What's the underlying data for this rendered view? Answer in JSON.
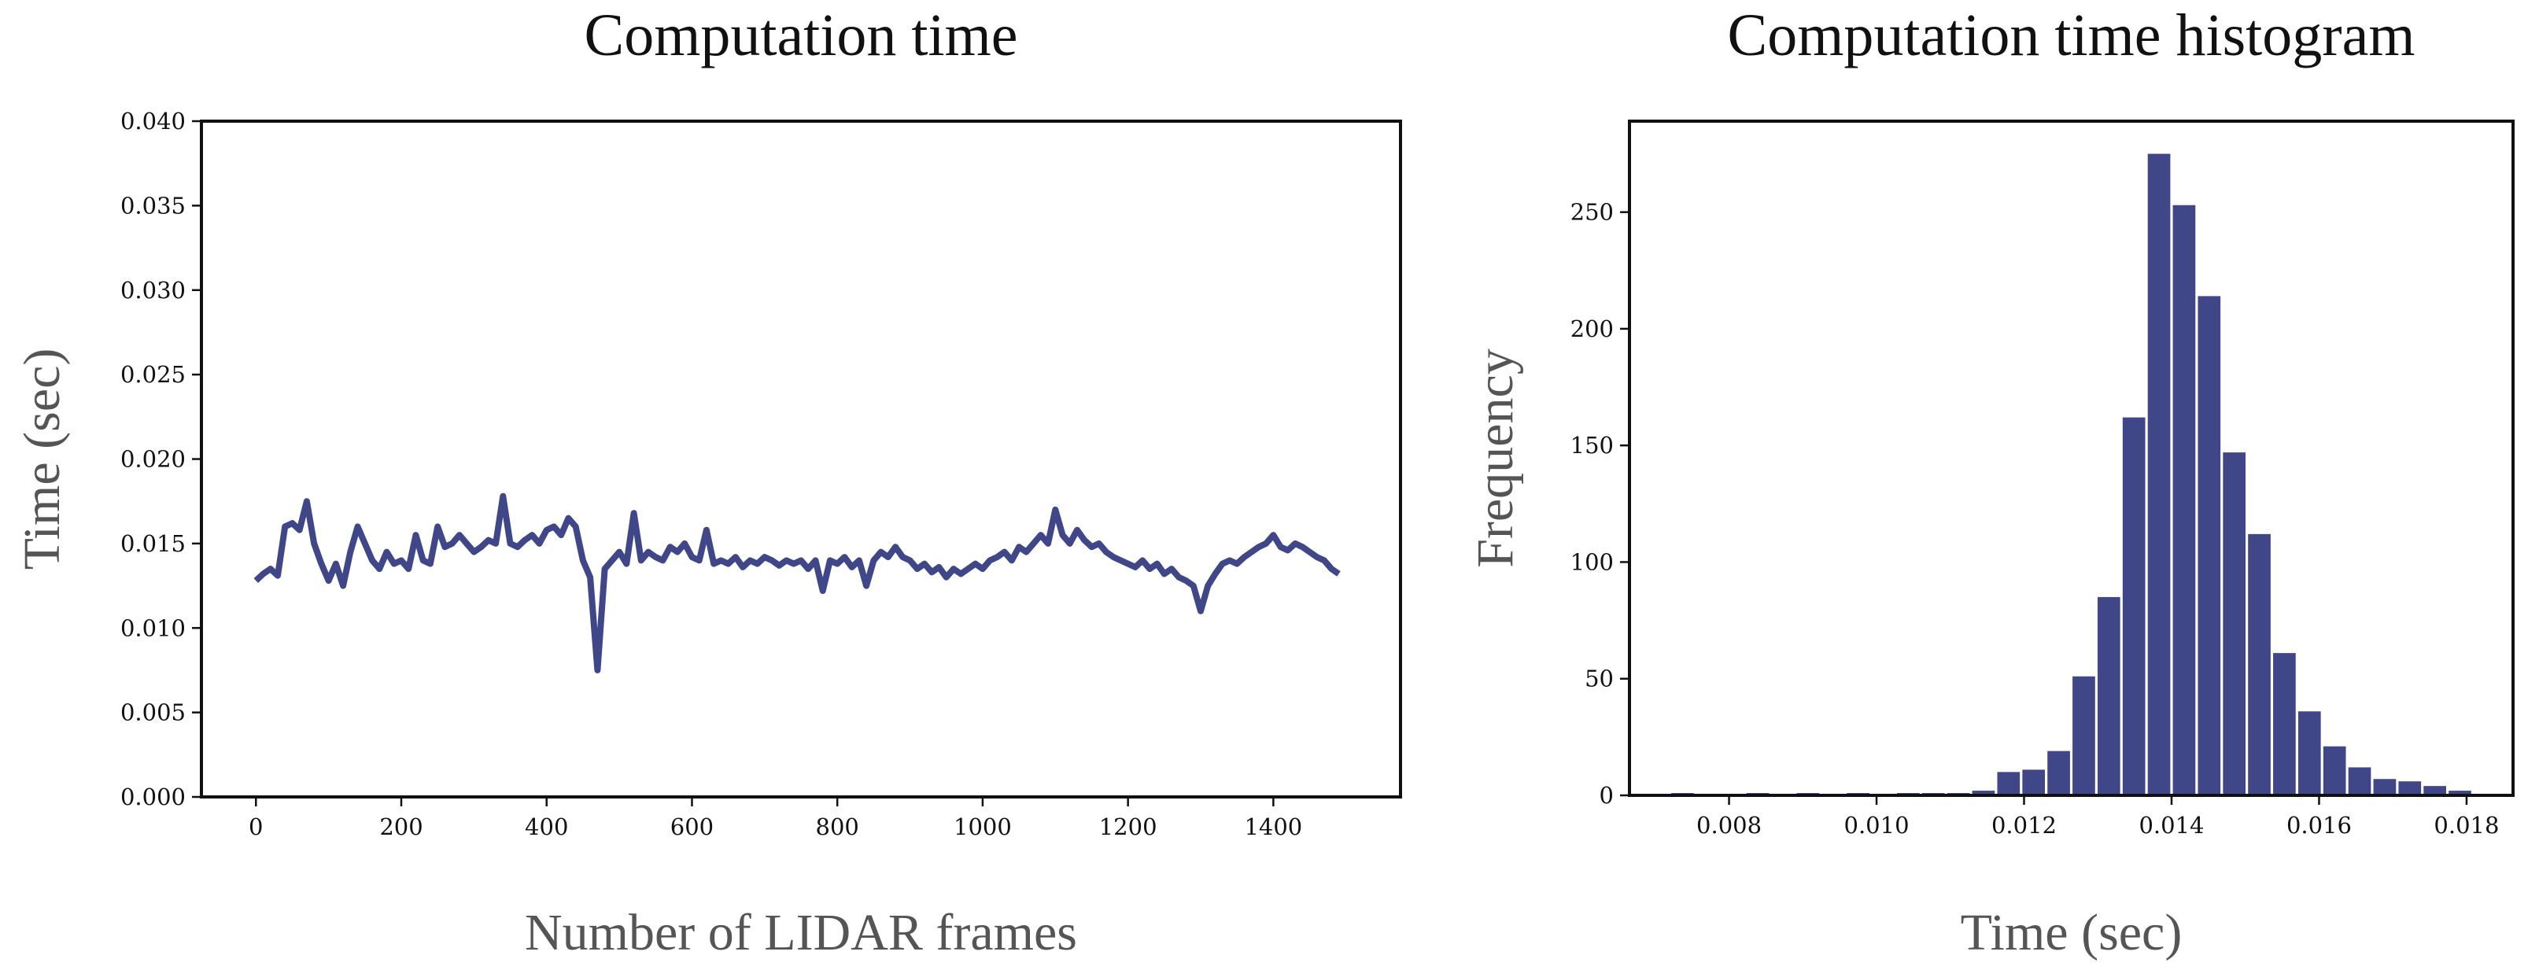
{
  "chart_data": [
    {
      "type": "line",
      "title": "Computation time",
      "x_label": "Number of LIDAR frames",
      "y_label": "Time (sec)",
      "series": [
        {
          "name": "Computation time",
          "color": "#3f4788",
          "x": [
            0,
            10,
            20,
            30,
            40,
            50,
            60,
            70,
            80,
            90,
            100,
            110,
            120,
            130,
            140,
            150,
            160,
            170,
            180,
            190,
            200,
            210,
            220,
            230,
            240,
            250,
            260,
            270,
            280,
            290,
            300,
            310,
            320,
            330,
            340,
            350,
            360,
            370,
            380,
            390,
            400,
            410,
            420,
            430,
            440,
            450,
            460,
            470,
            480,
            490,
            500,
            510,
            520,
            530,
            540,
            550,
            560,
            570,
            580,
            590,
            600,
            610,
            620,
            630,
            640,
            650,
            660,
            670,
            680,
            690,
            700,
            710,
            720,
            730,
            740,
            750,
            760,
            770,
            780,
            790,
            800,
            810,
            820,
            830,
            840,
            850,
            860,
            870,
            880,
            890,
            900,
            910,
            920,
            930,
            940,
            950,
            960,
            970,
            980,
            990,
            1000,
            1010,
            1020,
            1030,
            1040,
            1050,
            1060,
            1070,
            1080,
            1090,
            1100,
            1110,
            1120,
            1130,
            1140,
            1150,
            1160,
            1170,
            1180,
            1190,
            1200,
            1210,
            1220,
            1230,
            1240,
            1250,
            1260,
            1270,
            1280,
            1290,
            1300,
            1310,
            1320,
            1330,
            1340,
            1350,
            1360,
            1370,
            1380,
            1390,
            1400,
            1410,
            1420,
            1430,
            1440,
            1450,
            1460,
            1470,
            1480,
            1490
          ],
          "values": [
            0.0128,
            0.0132,
            0.0135,
            0.0131,
            0.016,
            0.0162,
            0.0158,
            0.0175,
            0.015,
            0.0138,
            0.0128,
            0.0138,
            0.0125,
            0.0145,
            0.016,
            0.015,
            0.014,
            0.0135,
            0.0145,
            0.0138,
            0.014,
            0.0135,
            0.0155,
            0.014,
            0.0138,
            0.016,
            0.0148,
            0.015,
            0.0155,
            0.015,
            0.0145,
            0.0148,
            0.0152,
            0.015,
            0.0178,
            0.015,
            0.0148,
            0.0152,
            0.0155,
            0.015,
            0.0158,
            0.016,
            0.0155,
            0.0165,
            0.016,
            0.014,
            0.013,
            0.0075,
            0.0135,
            0.014,
            0.0145,
            0.0138,
            0.0168,
            0.014,
            0.0145,
            0.0142,
            0.014,
            0.0148,
            0.0145,
            0.015,
            0.0142,
            0.014,
            0.0158,
            0.0138,
            0.014,
            0.0138,
            0.0142,
            0.0136,
            0.014,
            0.0138,
            0.0142,
            0.014,
            0.0137,
            0.014,
            0.0138,
            0.014,
            0.0135,
            0.014,
            0.0122,
            0.014,
            0.0138,
            0.0142,
            0.0136,
            0.014,
            0.0125,
            0.014,
            0.0145,
            0.0142,
            0.0148,
            0.0142,
            0.014,
            0.0135,
            0.0138,
            0.0133,
            0.0136,
            0.013,
            0.0135,
            0.0132,
            0.0135,
            0.0138,
            0.0135,
            0.014,
            0.0142,
            0.0145,
            0.014,
            0.0148,
            0.0145,
            0.015,
            0.0155,
            0.015,
            0.017,
            0.0155,
            0.015,
            0.0158,
            0.0152,
            0.0148,
            0.015,
            0.0145,
            0.0142,
            0.014,
            0.0138,
            0.0136,
            0.014,
            0.0135,
            0.0138,
            0.0132,
            0.0135,
            0.013,
            0.0128,
            0.0125,
            0.011,
            0.0125,
            0.0132,
            0.0138,
            0.014,
            0.0138,
            0.0142,
            0.0145,
            0.0148,
            0.015,
            0.0155,
            0.0148,
            0.0146,
            0.015,
            0.0148,
            0.0145,
            0.0142,
            0.014,
            0.0135,
            0.0132
          ]
        }
      ],
      "xlim": [
        -75,
        1575
      ],
      "xticks": [
        0,
        200,
        400,
        600,
        800,
        1000,
        1200,
        1400
      ],
      "ylim": [
        0,
        0.04
      ],
      "yticks": [
        {
          "value": 0,
          "label": "0.000"
        },
        0.005,
        {
          "value": 0.01,
          "label": "0.010"
        },
        0.015,
        {
          "value": 0.02,
          "label": "0.020"
        },
        0.025,
        {
          "value": 0.03,
          "label": "0.030"
        },
        0.035,
        {
          "value": 0.04,
          "label": "0.040"
        }
      ]
    },
    {
      "type": "histogram",
      "title": "Computation time histogram",
      "x_label": "Time (sec)",
      "y_label": "Frequency",
      "color": "#3f4788",
      "bins": [
        0.0072,
        0.00754,
        0.00788,
        0.00822,
        0.00856,
        0.0089,
        0.00924,
        0.00958,
        0.00992,
        0.01026,
        0.0106,
        0.01094,
        0.01128,
        0.01162,
        0.01196,
        0.0123,
        0.01264,
        0.01298,
        0.01332,
        0.01366,
        0.014,
        0.01434,
        0.01468,
        0.01502,
        0.01536,
        0.0157,
        0.01604,
        0.01638,
        0.01672,
        0.01706,
        0.0174,
        0.01774,
        0.01808
      ],
      "values": [
        1,
        0,
        0,
        1,
        0,
        1,
        0,
        1,
        0,
        1,
        1,
        1,
        2,
        10,
        11,
        19,
        51,
        85,
        162,
        275,
        253,
        214,
        147,
        112,
        61,
        36,
        21,
        12,
        7,
        6,
        4,
        2
      ],
      "xlim": [
        0.00665,
        0.01863
      ],
      "xticks": [
        0.008,
        {
          "value": 0.01,
          "label": "0.010"
        },
        0.012,
        0.014,
        0.016,
        0.018
      ],
      "ylim": [
        0,
        289
      ],
      "yticks": [
        0,
        50,
        100,
        150,
        200,
        250
      ]
    }
  ]
}
